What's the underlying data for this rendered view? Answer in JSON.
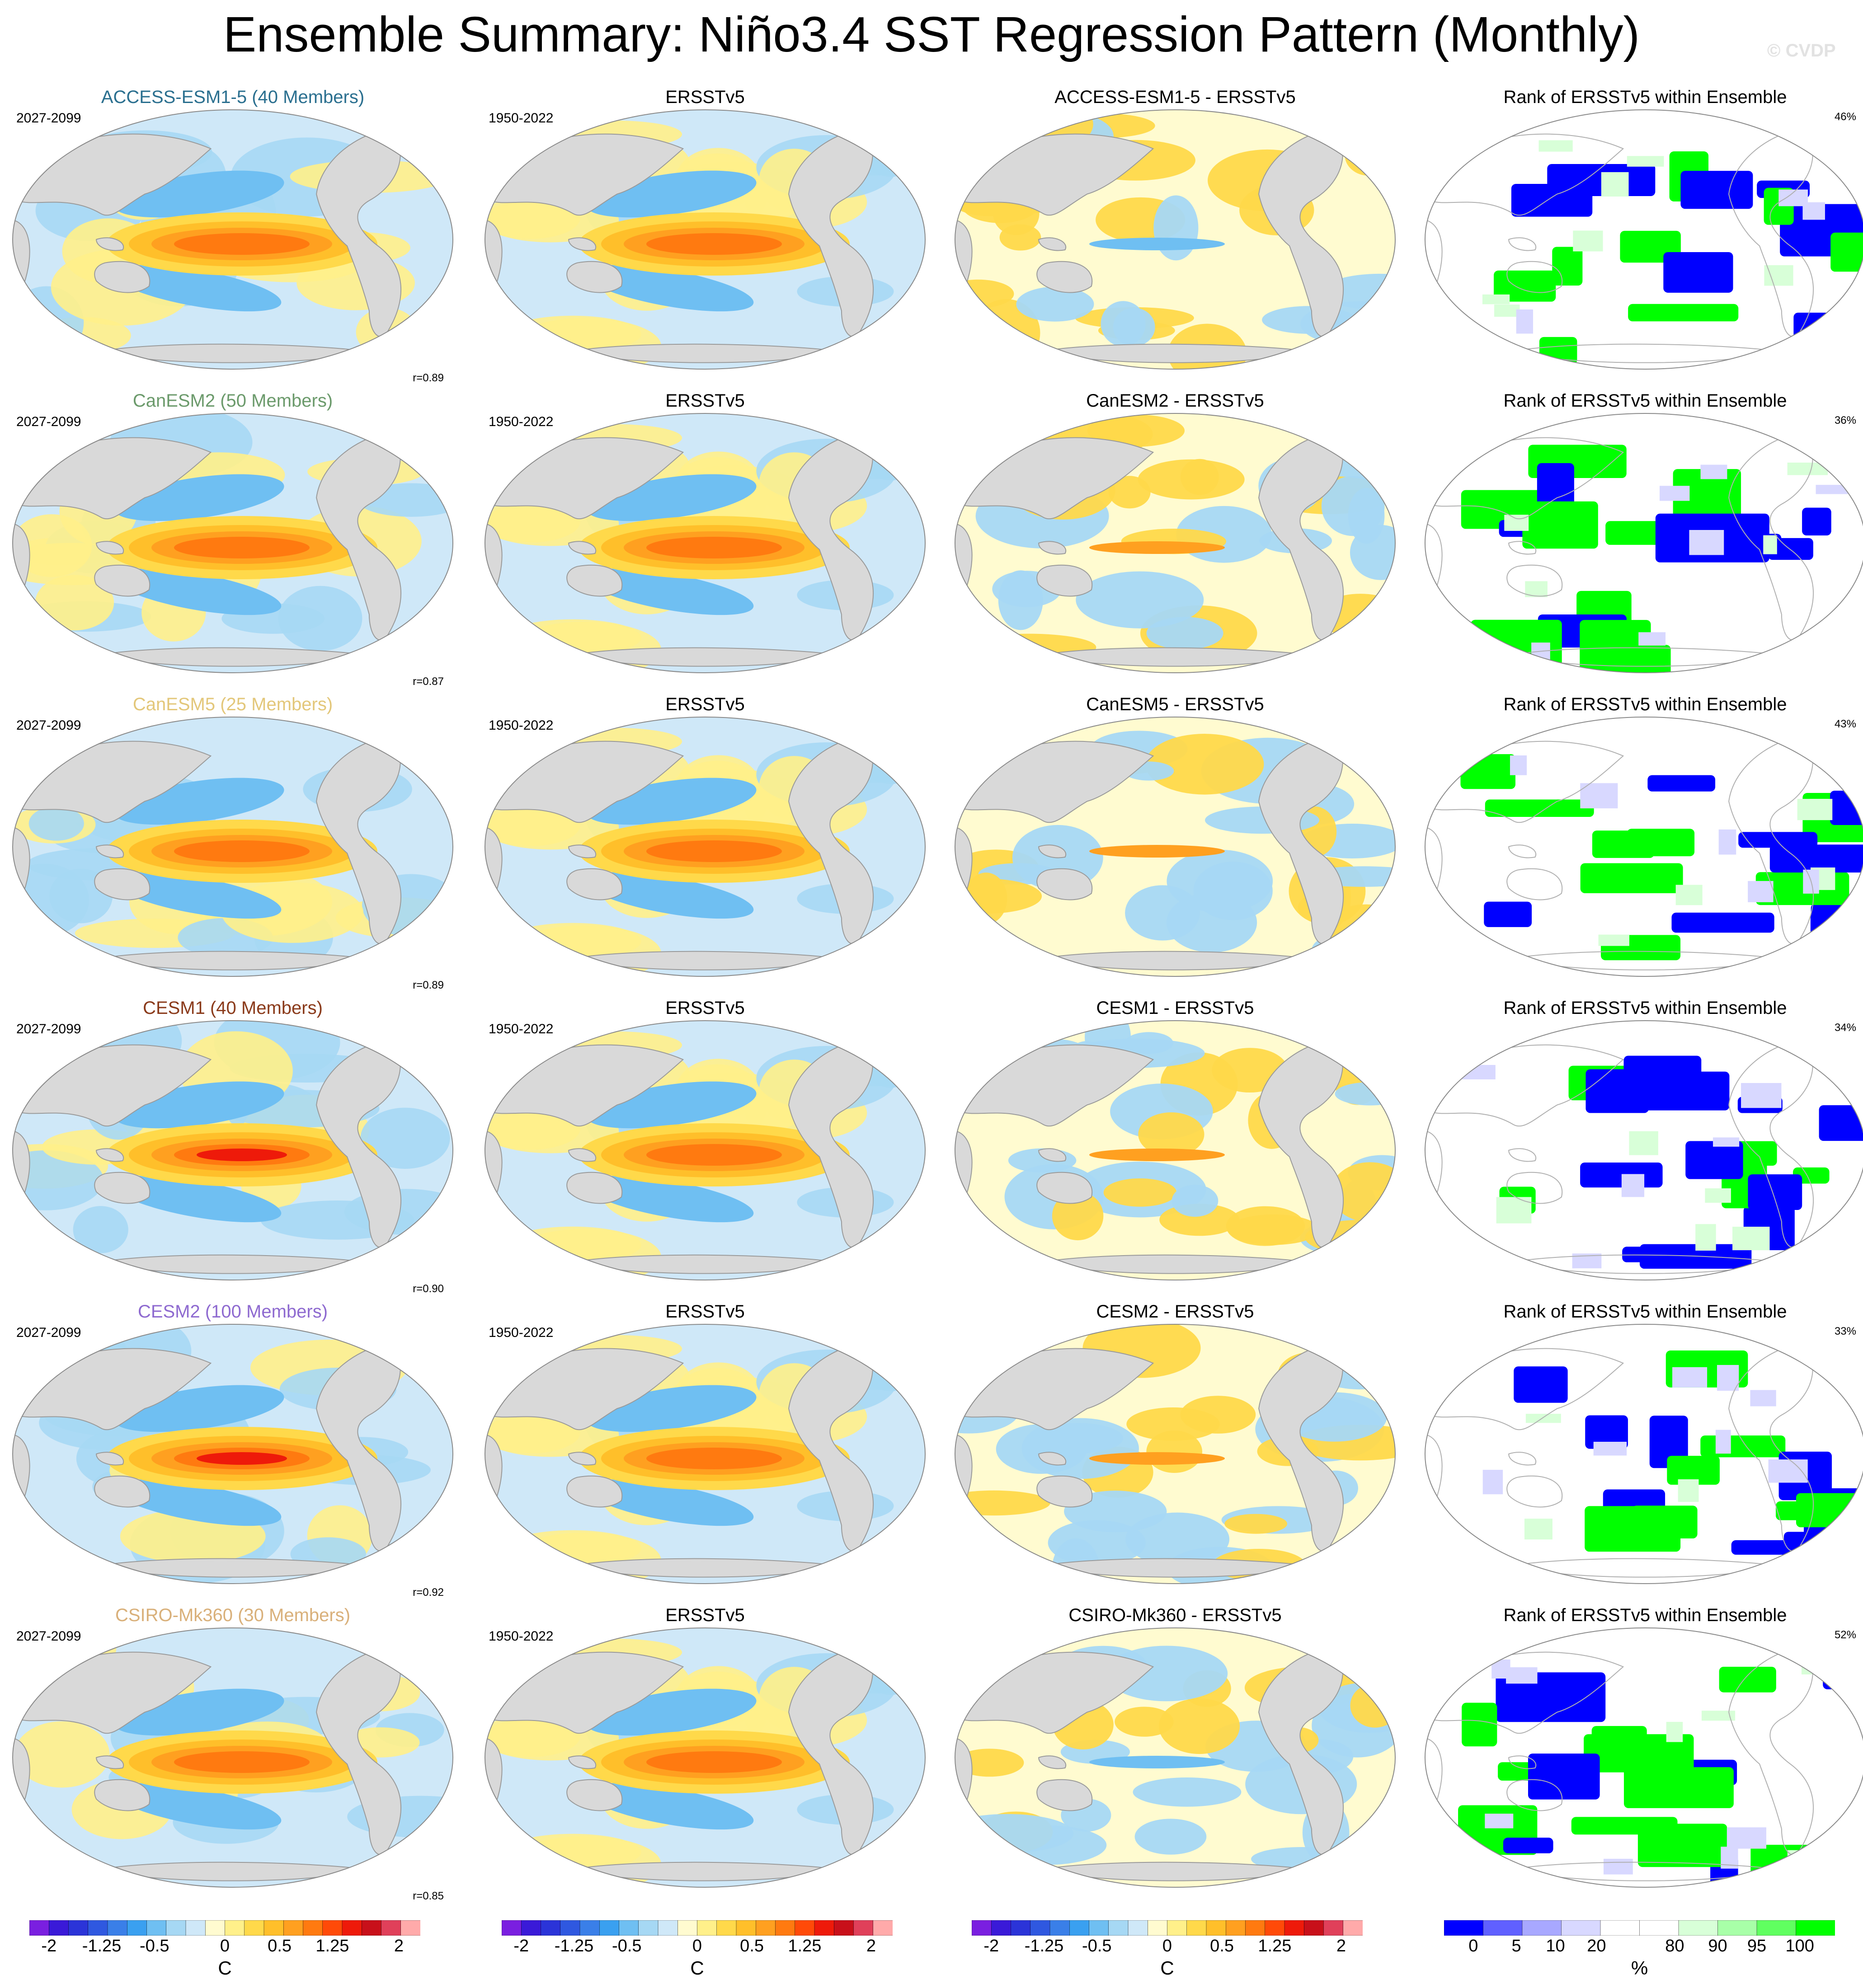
{
  "title": "Ensemble Summary: Niño3.4 SST Regression Pattern (Monthly)",
  "watermark": "© CVDP",
  "rows": [
    {
      "model_title": "ACCESS-ESM1-5 (40 Members)",
      "model_color": "#2a6f8f",
      "period": "2027-2099",
      "obs_period": "1950-2022",
      "r": "r=0.89",
      "diff_title": "ACCESS-ESM1-5 - ERSSTv5",
      "rank_pct": "46%"
    },
    {
      "model_title": "CanESM2 (50 Members)",
      "model_color": "#6b9a6b",
      "period": "2027-2099",
      "obs_period": "1950-2022",
      "r": "r=0.87",
      "diff_title": "CanESM2 - ERSSTv5",
      "rank_pct": "36%"
    },
    {
      "model_title": "CanESM5 (25 Members)",
      "model_color": "#e3c77a",
      "period": "2027-2099",
      "obs_period": "1950-2022",
      "r": "r=0.89",
      "diff_title": "CanESM5 - ERSSTv5",
      "rank_pct": "43%"
    },
    {
      "model_title": "CESM1 (40 Members)",
      "model_color": "#8a3a1a",
      "period": "2027-2099",
      "obs_period": "1950-2022",
      "r": "r=0.90",
      "diff_title": "CESM1 - ERSSTv5",
      "rank_pct": "34%"
    },
    {
      "model_title": "CESM2 (100 Members)",
      "model_color": "#8e6ad0",
      "period": "2027-2099",
      "obs_period": "1950-2022",
      "r": "r=0.92",
      "diff_title": "CESM2 - ERSSTv5",
      "rank_pct": "33%"
    },
    {
      "model_title": "CSIRO-Mk360 (30 Members)",
      "model_color": "#d9b07a",
      "period": "2027-2099",
      "obs_period": "1950-2022",
      "r": "r=0.85",
      "diff_title": "CSIRO-Mk360 - ERSSTv5",
      "rank_pct": "52%"
    }
  ],
  "obs_title": "ERSSTv5",
  "rank_title": "Rank of ERSSTv5 within Ensemble",
  "sst_colorbar": {
    "colors": [
      "#7a1fe0",
      "#3a1ad8",
      "#2b34d8",
      "#2f58e0",
      "#3a7fe8",
      "#3aa0f0",
      "#6fbff2",
      "#a6d8f4",
      "#cfe8f8",
      "#fffbd0",
      "#fff08a",
      "#ffd94a",
      "#ffbf2a",
      "#ffa020",
      "#ff7a10",
      "#ff4a08",
      "#ee1a0a",
      "#c8101a",
      "#e0405a",
      "#ffaaaa"
    ],
    "ticks": [
      "-2",
      "-1.25",
      "-0.5",
      "0",
      "0.5",
      "1.25",
      "2"
    ],
    "unit": "C"
  },
  "rank_colorbar": {
    "colors": [
      "#0000ff",
      "#6060ff",
      "#a8a8ff",
      "#d8d8ff",
      "#ffffff",
      "#ffffff",
      "#d8ffd8",
      "#a8ffa8",
      "#60ff60",
      "#00ff00"
    ],
    "ticks": [
      "0",
      "5",
      "10",
      "20",
      "80",
      "90",
      "95",
      "100"
    ],
    "unit": "%"
  }
}
